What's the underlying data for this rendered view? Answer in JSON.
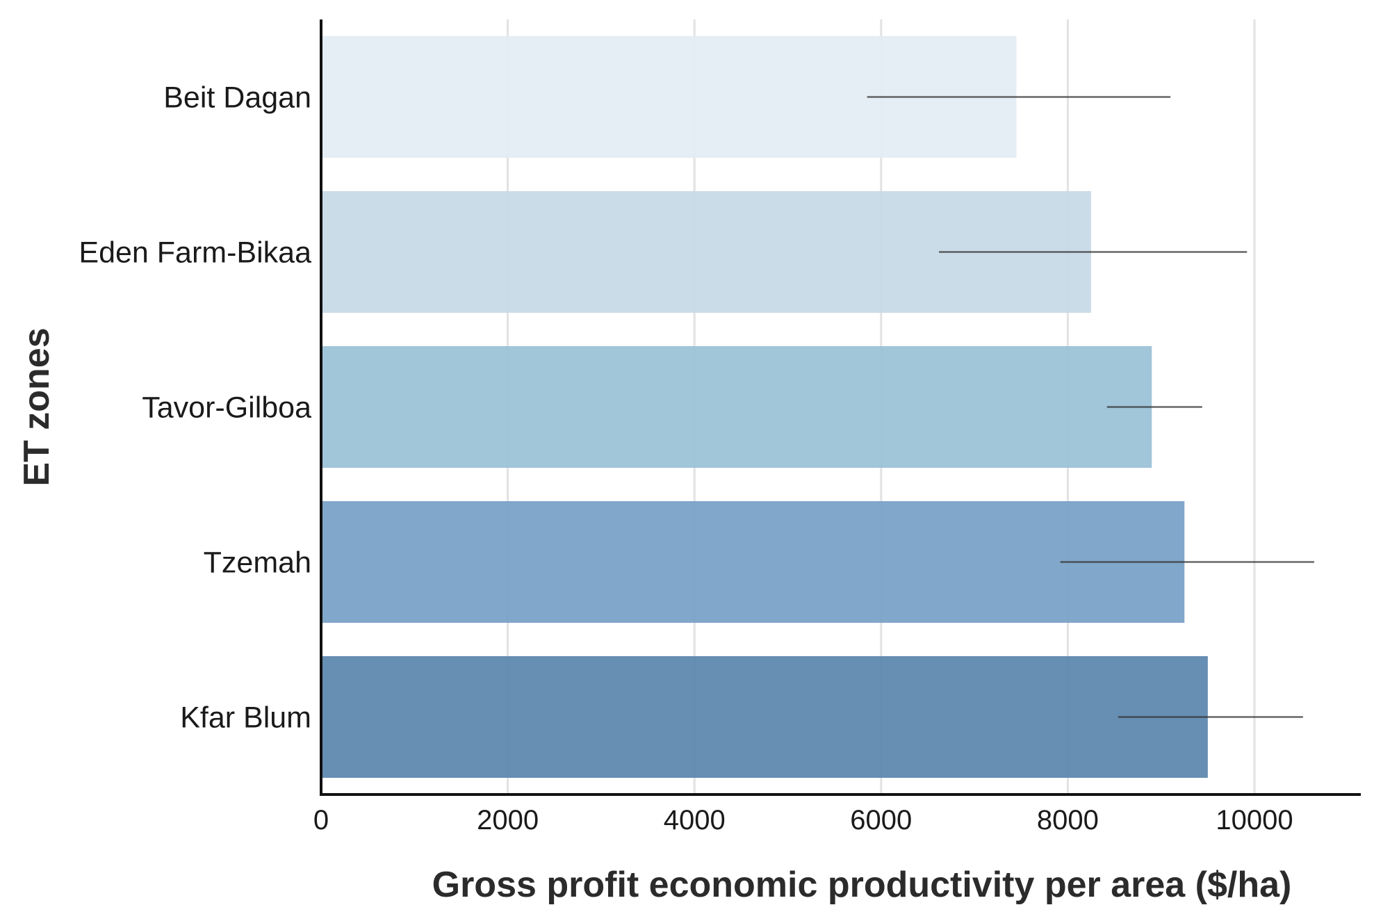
{
  "chart_data": {
    "type": "bar",
    "orientation": "horizontal",
    "title": "",
    "xlabel": "Gross profit economic productivity per area ($/ha)",
    "ylabel": "ET zones",
    "xlim": [
      0,
      11200
    ],
    "xticks": [
      0,
      2000,
      4000,
      6000,
      8000,
      10000
    ],
    "xtick_labels": [
      "0",
      "2000",
      "4000",
      "6000",
      "8000",
      "10000"
    ],
    "grid": "vertical",
    "legend": "none",
    "categories": [
      "Beit Dagan",
      "Eden Farm-Bikaa",
      "Tavor-Gilboa",
      "Tzemah",
      "Kfar Blum"
    ],
    "values": [
      7450,
      8250,
      8900,
      9250,
      9500
    ],
    "error_low": [
      5850,
      6620,
      8420,
      7920,
      8540
    ],
    "error_high": [
      9100,
      9920,
      9440,
      10640,
      10520
    ],
    "colors": [
      "#e3ecf4",
      "#c5d9e6",
      "#99c0d6",
      "#76a0c5",
      "#5a84ad"
    ]
  }
}
